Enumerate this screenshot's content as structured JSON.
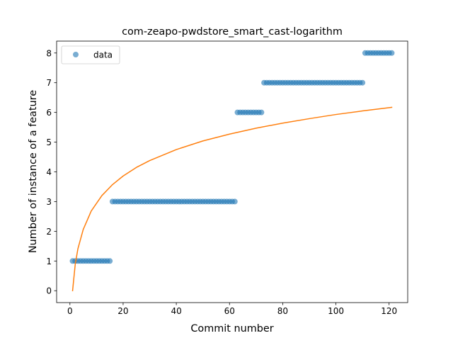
{
  "chart_data": {
    "type": "scatter",
    "title": "com-zeapo-pwdstore_smart_cast-logarithm",
    "xlabel": "Commit number",
    "ylabel": "Number of instance of a feature",
    "xlim": [
      -5,
      127
    ],
    "ylim": [
      -0.4,
      8.4
    ],
    "xticks": [
      0,
      20,
      40,
      60,
      80,
      100,
      120
    ],
    "yticks": [
      0,
      1,
      2,
      3,
      4,
      5,
      6,
      7,
      8
    ],
    "grid": false,
    "legend": {
      "position": "top-left",
      "entries": [
        "data"
      ]
    },
    "colors": {
      "data": "#1f77b4",
      "fit": "#ff7f0e"
    },
    "series": [
      {
        "name": "data",
        "kind": "scatter",
        "segments": [
          {
            "x_from": 1,
            "x_to": 15,
            "y": 1
          },
          {
            "x_from": 16,
            "x_to": 62,
            "y": 3
          },
          {
            "x_from": 63,
            "x_to": 72,
            "y": 6
          },
          {
            "x_from": 73,
            "x_to": 110,
            "y": 7
          },
          {
            "x_from": 111,
            "x_to": 121,
            "y": 8
          }
        ]
      },
      {
        "kind": "line",
        "x": [
          1,
          2,
          3,
          5,
          8,
          12,
          16,
          20,
          25,
          30,
          40,
          50,
          60,
          70,
          80,
          90,
          100,
          110,
          121
        ],
        "y": [
          0,
          0.89,
          1.41,
          2.06,
          2.68,
          3.2,
          3.57,
          3.86,
          4.15,
          4.38,
          4.75,
          5.04,
          5.27,
          5.47,
          5.64,
          5.79,
          5.93,
          6.05,
          6.17
        ]
      }
    ]
  }
}
